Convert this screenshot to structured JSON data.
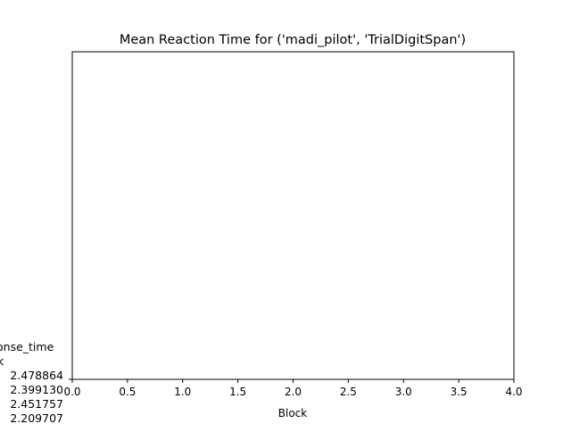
{
  "chart_data": {
    "type": "line",
    "title": "Mean Reaction Time for ('madi_pilot', 'TrialDigitSpan')",
    "xlabel": "Block",
    "ylabel": "",
    "xlim": [
      0.0,
      4.0
    ],
    "xticks": [
      "0.0",
      "0.5",
      "1.0",
      "1.5",
      "2.0",
      "2.5",
      "3.0",
      "3.5",
      "4.0"
    ],
    "grid": false,
    "series": [],
    "ytick_text_lines": [
      "onse_time",
      "k",
      "2.478864",
      "2.399130",
      "2.451757",
      "2.209707"
    ]
  }
}
